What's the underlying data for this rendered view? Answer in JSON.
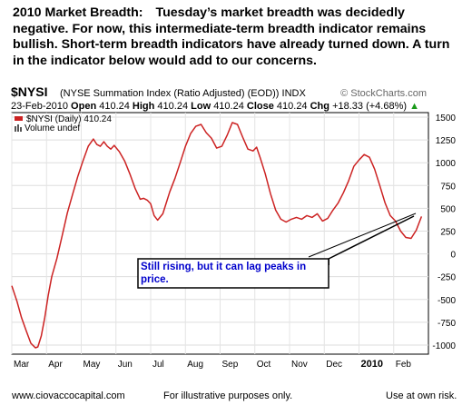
{
  "intro": {
    "heading": "2010 Market Breadth:",
    "body": "Tuesday’s market breadth was decidedly negative. For now, this intermediate-term breadth indicator remains bullish. Short-term breadth indicators have already turned down. A turn in the indicator below would add to our concerns."
  },
  "footer": {
    "website": "www.ciovaccocapital.com",
    "note": "For illustrative purposes only.",
    "risk": "Use at own risk."
  },
  "chart_data": {
    "type": "line",
    "symbol": "$NYSI",
    "title": "(NYSE Summation Index (Ratio Adjusted) (EOD)) INDX",
    "watermark": "© StockCharts.com",
    "date_line": "23-Feb-2010",
    "ohlc": [
      {
        "label": "Open",
        "value": "410.24"
      },
      {
        "label": "High",
        "value": "410.24"
      },
      {
        "label": "Low",
        "value": "410.24"
      },
      {
        "label": "Close",
        "value": "410.24"
      },
      {
        "label": "Chg",
        "value": "+18.33 (+4.68%)",
        "trend": "up"
      }
    ],
    "legend": [
      {
        "text": "$NYSI (Daily) 410.24",
        "color": "#cc2222"
      },
      {
        "text": "Volume undef",
        "color": "#555555"
      }
    ],
    "xlabels": [
      "Mar",
      "Apr",
      "May",
      "Jun",
      "Jul",
      "Aug",
      "Sep",
      "Oct",
      "Nov",
      "Dec",
      "2010",
      "Feb"
    ],
    "xlabel_bold": "2010",
    "ylim": [
      -1100,
      1550
    ],
    "yticks": [
      -1000,
      -750,
      -500,
      -250,
      0,
      250,
      500,
      750,
      1000,
      1250,
      1500
    ],
    "grid": true,
    "x_unit": "month index, 0 = start of Mar 2009",
    "series": [
      {
        "name": "$NYSI (Daily)",
        "x": [
          0,
          0.15,
          0.28,
          0.42,
          0.55,
          0.68,
          0.75,
          0.85,
          0.95,
          1.05,
          1.15,
          1.3,
          1.45,
          1.6,
          1.75,
          1.9,
          2.05,
          2.2,
          2.35,
          2.45,
          2.55,
          2.65,
          2.75,
          2.85,
          2.95,
          3.1,
          3.25,
          3.4,
          3.55,
          3.7,
          3.8,
          3.9,
          4,
          4.1,
          4.2,
          4.35,
          4.45,
          4.55,
          4.7,
          4.85,
          5,
          5.15,
          5.3,
          5.45,
          5.6,
          5.75,
          5.9,
          6.05,
          6.2,
          6.35,
          6.5,
          6.65,
          6.8,
          6.95,
          7.05,
          7.15,
          7.3,
          7.45,
          7.6,
          7.75,
          7.9,
          8.05,
          8.2,
          8.35,
          8.5,
          8.65,
          8.8,
          8.95,
          9.1,
          9.25,
          9.4,
          9.55,
          9.7,
          9.85,
          10,
          10.15,
          10.3,
          10.45,
          10.6,
          10.75,
          10.9,
          11.05,
          11.2,
          11.35,
          11.5,
          11.65,
          11.8
        ],
        "values": [
          -350,
          -520,
          -700,
          -850,
          -980,
          -1030,
          -1020,
          -900,
          -700,
          -450,
          -250,
          -50,
          200,
          450,
          650,
          850,
          1020,
          1180,
          1260,
          1200,
          1180,
          1230,
          1180,
          1150,
          1190,
          1120,
          1020,
          880,
          720,
          600,
          610,
          590,
          550,
          420,
          370,
          440,
          560,
          680,
          830,
          1000,
          1180,
          1320,
          1400,
          1420,
          1330,
          1270,
          1160,
          1180,
          1300,
          1440,
          1420,
          1280,
          1150,
          1130,
          1170,
          1060,
          880,
          660,
          480,
          380,
          350,
          380,
          400,
          380,
          420,
          400,
          440,
          360,
          390,
          480,
          560,
          670,
          800,
          960,
          1030,
          1090,
          1060,
          930,
          750,
          560,
          420,
          360,
          250,
          180,
          170,
          260,
          410
        ],
        "color": "#cc2222"
      }
    ],
    "annotation": {
      "text": "Still rising, but it can lag peaks in price.",
      "text_color": "#0000cc"
    }
  }
}
